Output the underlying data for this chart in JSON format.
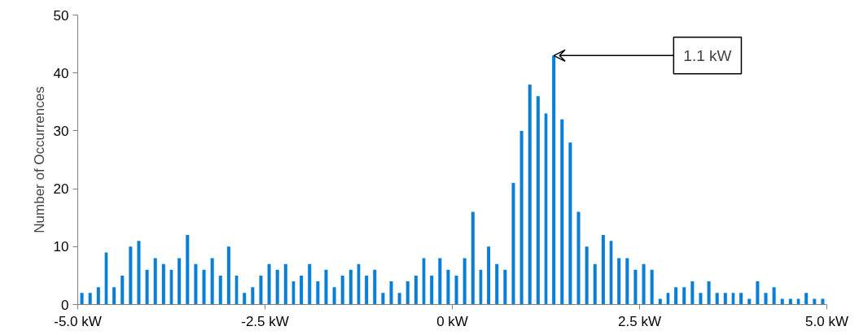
{
  "chart_data": {
    "type": "histogram",
    "ylabel": "Number of Occurrences",
    "bins": [
      -5.0,
      -4.89,
      -4.78,
      -4.67,
      -4.57,
      -4.46,
      -4.35,
      -4.24,
      -4.13,
      -4.02,
      -3.91,
      -3.8,
      -3.7,
      -3.59,
      -3.48,
      -3.37,
      -3.26,
      -3.15,
      -3.04,
      -2.93,
      -2.83,
      -2.72,
      -2.61,
      -2.5,
      -2.39,
      -2.28,
      -2.17,
      -2.07,
      -1.96,
      -1.85,
      -1.74,
      -1.63,
      -1.52,
      -1.41,
      -1.3,
      -1.2,
      -1.09,
      -0.98,
      -0.87,
      -0.76,
      -0.65,
      -0.54,
      -0.43,
      -0.33,
      -0.22,
      -0.11,
      0,
      0.11,
      0.22,
      0.33,
      0.43,
      0.54,
      0.65,
      0.76,
      0.87,
      0.98,
      1.09,
      1.2,
      1.3,
      1.41,
      1.52,
      1.63,
      1.74,
      1.85,
      1.96,
      2.07,
      2.17,
      2.28,
      2.39,
      2.5,
      2.61,
      2.72,
      2.83,
      2.93,
      3.04,
      3.15,
      3.26,
      3.37,
      3.48,
      3.59,
      3.7,
      3.8,
      3.91,
      4.02,
      4.13,
      4.24,
      4.35,
      4.46,
      4.57,
      4.67,
      4.78,
      4.89,
      5.0
    ],
    "values": [
      2,
      2,
      3,
      9,
      3,
      5,
      10,
      11,
      6,
      8,
      7,
      6,
      8,
      12,
      7,
      6,
      8,
      5,
      10,
      5,
      2,
      3,
      5,
      7,
      6,
      7,
      4,
      5,
      7,
      4,
      6,
      3,
      5,
      6,
      7,
      5,
      6,
      2,
      4,
      2,
      4,
      5,
      8,
      5,
      8,
      6,
      5,
      8,
      16,
      6,
      10,
      7,
      6,
      21,
      30,
      38,
      36,
      33,
      43,
      32,
      28,
      16,
      10,
      7,
      12,
      11,
      8,
      8,
      6,
      7,
      6,
      1,
      2,
      3,
      3,
      4,
      2,
      4,
      2,
      2,
      2,
      2,
      1,
      4,
      2,
      3,
      1,
      1,
      1,
      2,
      1,
      1
    ],
    "color": "#0a7fd6",
    "xlim": [
      -5,
      5
    ],
    "xticks": [
      {
        "value": -5,
        "label": "-5.0 kW"
      },
      {
        "value": -2.5,
        "label": "-2.5 kW"
      },
      {
        "value": 0,
        "label": "0 kW"
      },
      {
        "value": 2.5,
        "label": "2.5 kW"
      },
      {
        "value": 5,
        "label": "5.0 kW"
      }
    ],
    "ylim": [
      0,
      50
    ],
    "yticks": [
      0,
      10,
      20,
      30,
      40,
      50
    ],
    "grid": false,
    "annotations": [
      {
        "text": "1.1 kW",
        "x": 1.355,
        "y": 43
      }
    ]
  }
}
